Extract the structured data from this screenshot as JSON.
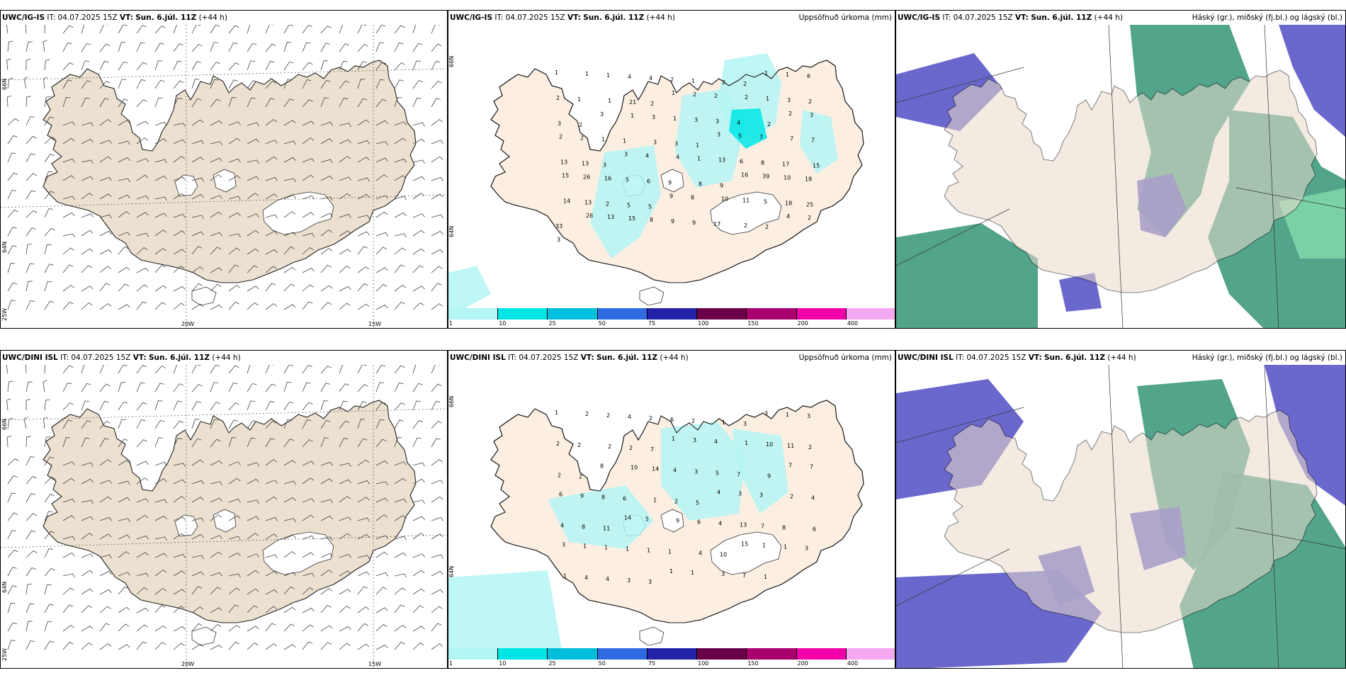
{
  "common": {
    "it_label": "IT:",
    "it_value": "04.07.2025 15Z",
    "vt_label": "VT:",
    "vt_value": "Sun. 6.júl. 11Z",
    "lead": "(+44 h)"
  },
  "rows": [
    {
      "model": "UWC/IG-IS"
    },
    {
      "model": "UWC/DINI ISL"
    }
  ],
  "precip_title": "Uppsöfnuð úrkoma (mm)",
  "cloud_title": "Háský (gr.), miðský (fj.bl.) og lágský (bl.)",
  "axes": {
    "lon_labels": [
      "20W",
      "15W"
    ],
    "lat_labels": [
      "66N",
      "64N",
      "25W"
    ],
    "lat_labels_mid": [
      "66N",
      "64N"
    ]
  },
  "colorbar": {
    "ticks": [
      "1",
      "10",
      "25",
      "50",
      "75",
      "100",
      "150",
      "200",
      "400"
    ],
    "colors": [
      "#b4f5f5",
      "#00e6e6",
      "#00bedc",
      "#2f6be0",
      "#2222a8",
      "#6a0048",
      "#a8006c",
      "#f200a8",
      "#f4a8f0"
    ]
  },
  "precip_labels_top": [
    "1",
    "1",
    "1",
    "4",
    "4",
    "2",
    "1",
    "2",
    "2",
    "1",
    "1",
    "6",
    "2",
    "1",
    "1",
    "21",
    "2",
    "1",
    "2",
    "2",
    "2",
    "1",
    "3",
    "2",
    "3",
    "2",
    "3",
    "1",
    "3",
    "1",
    "3",
    "3",
    "4",
    "2",
    "2",
    "3",
    "2",
    "2",
    "1",
    "1",
    "3",
    "3",
    "1",
    "3",
    "5",
    "7",
    "7",
    "7",
    "13",
    "13",
    "3",
    "3",
    "4",
    "4",
    "1",
    "13",
    "6",
    "8",
    "17",
    "15",
    "15",
    "26",
    "16",
    "5",
    "6",
    "9",
    "8",
    "9",
    "16",
    "39",
    "10",
    "18",
    "14",
    "13",
    "2",
    "5",
    "5",
    "9",
    "8",
    "10",
    "11",
    "5",
    "18",
    "25",
    "33",
    "26",
    "13",
    "15",
    "8",
    "9",
    "9",
    "17",
    "2",
    "2",
    "4",
    "2",
    "3"
  ],
  "precip_labels_bottom": [
    "1",
    "2",
    "2",
    "4",
    "2",
    "6",
    "2",
    "1",
    "3",
    "3",
    "1",
    "3",
    "2",
    "2",
    "2",
    "2",
    "7",
    "1",
    "3",
    "4",
    "1",
    "10",
    "11",
    "2",
    "2",
    "2",
    "8",
    "10",
    "14",
    "4",
    "3",
    "5",
    "7",
    "9",
    "7",
    "7",
    "6",
    "9",
    "8",
    "6",
    "1",
    "2",
    "5",
    "4",
    "3",
    "3",
    "2",
    "4",
    "4",
    "8",
    "11",
    "14",
    "5",
    "9",
    "6",
    "4",
    "13",
    "7",
    "8",
    "6",
    "3",
    "1",
    "1",
    "1",
    "1",
    "1",
    "4",
    "10",
    "15",
    "1",
    "1",
    "3",
    "1",
    "4",
    "4",
    "3",
    "3",
    "1",
    "1",
    "3",
    "7",
    "1"
  ],
  "icons": {
    "map": "iceland-map",
    "barbs": "wind-barb-icon"
  }
}
